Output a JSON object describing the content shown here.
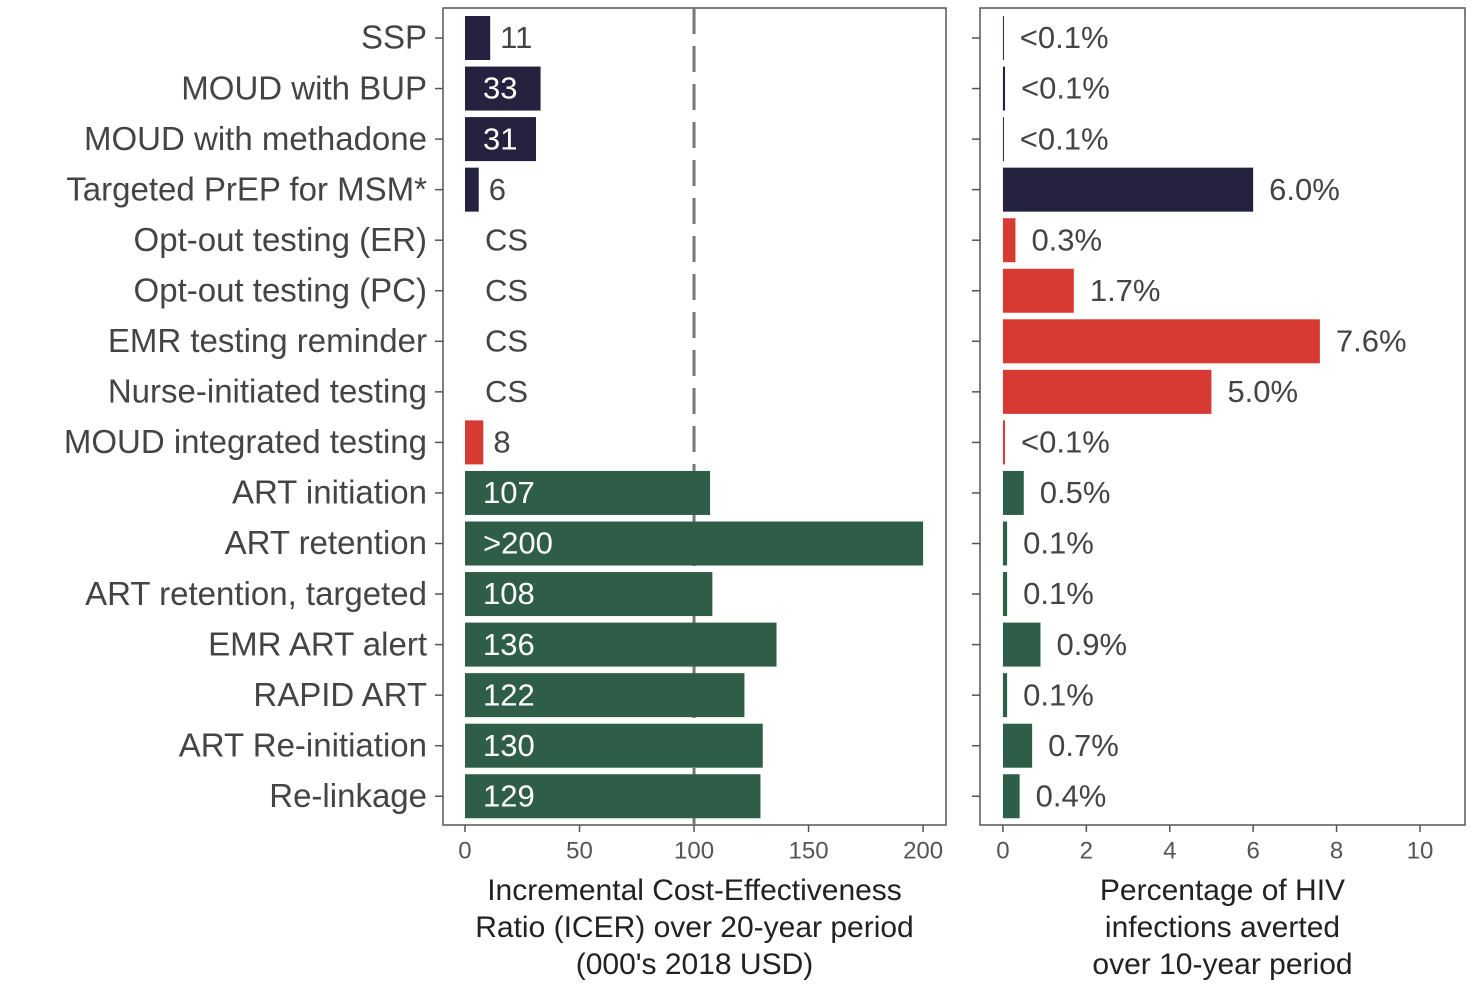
{
  "chart_data": [
    {
      "type": "hbar",
      "categories": [
        "SSP",
        "MOUD with BUP",
        "MOUD with methadone",
        "Targeted PrEP for MSM*",
        "Opt-out testing (ER)",
        "Opt-out testing (PC)",
        "EMR testing reminder",
        "Nurse-initiated testing",
        "MOUD integrated testing",
        "ART initiation",
        "ART retention",
        "ART retention, targeted",
        "EMR ART alert",
        "RAPID ART",
        "ART Re-initiation",
        "Re-linkage"
      ],
      "values": [
        11,
        33,
        31,
        6,
        null,
        null,
        null,
        null,
        8,
        107,
        200,
        108,
        136,
        122,
        130,
        129
      ],
      "value_labels": [
        "11",
        "33",
        "31",
        "6",
        "CS",
        "CS",
        "CS",
        "CS",
        "8",
        "107",
        ">200",
        "108",
        "136",
        "122",
        "130",
        "129"
      ],
      "colors": [
        "#24223f",
        "#24223f",
        "#24223f",
        "#24223f",
        "#d63a33",
        "#d63a33",
        "#d63a33",
        "#d63a33",
        "#d63a33",
        "#2e5e48",
        "#2e5e48",
        "#2e5e48",
        "#2e5e48",
        "#2e5e48",
        "#2e5e48",
        "#2e5e48"
      ],
      "xlim": [
        -9.6,
        210
      ],
      "xticks": [
        0,
        50,
        100,
        150,
        200
      ],
      "reference_line": 100,
      "xlabel": [
        "Incremental Cost-Effectiveness",
        "Ratio (ICER) over 20-year period",
        "(000's 2018 USD)"
      ]
    },
    {
      "type": "hbar",
      "values": [
        0.02,
        0.05,
        0.02,
        6.0,
        0.3,
        1.7,
        7.6,
        5.0,
        0.05,
        0.5,
        0.1,
        0.1,
        0.9,
        0.1,
        0.7,
        0.4
      ],
      "value_labels": [
        "<0.1%",
        "<0.1%",
        "<0.1%",
        "6.0%",
        "0.3%",
        "1.7%",
        "7.6%",
        "5.0%",
        "<0.1%",
        "0.5%",
        "0.1%",
        "0.1%",
        "0.9%",
        "0.1%",
        "0.7%",
        "0.4%"
      ],
      "colors": [
        "#24223f",
        "#24223f",
        "#24223f",
        "#24223f",
        "#d63a33",
        "#d63a33",
        "#d63a33",
        "#d63a33",
        "#d63a33",
        "#2e5e48",
        "#2e5e48",
        "#2e5e48",
        "#2e5e48",
        "#2e5e48",
        "#2e5e48",
        "#2e5e48"
      ],
      "xlim": [
        -0.55,
        11.08
      ],
      "xticks": [
        0,
        2,
        4,
        6,
        8,
        10
      ],
      "xlabel": [
        "Percentage of HIV",
        "infections averted",
        "over 10-year period"
      ]
    }
  ]
}
